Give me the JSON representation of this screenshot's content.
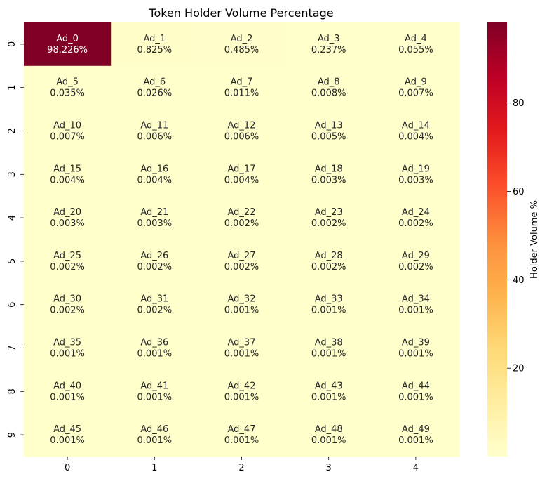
{
  "chart_data": {
    "type": "heatmap",
    "title": "Token Holder Volume Percentage",
    "xlabel": "",
    "ylabel": "",
    "x_ticks": [
      "0",
      "1",
      "2",
      "3",
      "4"
    ],
    "y_ticks": [
      "0",
      "1",
      "2",
      "3",
      "4",
      "5",
      "6",
      "7",
      "8",
      "9"
    ],
    "colorbar_label": "Holder Volume %",
    "colorbar_ticks": [
      "20",
      "40",
      "60",
      "80"
    ],
    "colorbar_range": [
      0.001,
      98.226
    ],
    "colormap": "YlOrRd",
    "colormap_stops": [
      "#ffffcc",
      "#ffeda0",
      "#fed976",
      "#feb24c",
      "#fd8d3c",
      "#fc4e2a",
      "#e31a1c",
      "#bd0026",
      "#800026"
    ],
    "cells": [
      [
        {
          "name": "Ad_0",
          "value": 98.226,
          "label": "98.226%"
        },
        {
          "name": "Ad_1",
          "value": 0.825,
          "label": "0.825%"
        },
        {
          "name": "Ad_2",
          "value": 0.485,
          "label": "0.485%"
        },
        {
          "name": "Ad_3",
          "value": 0.237,
          "label": "0.237%"
        },
        {
          "name": "Ad_4",
          "value": 0.055,
          "label": "0.055%"
        }
      ],
      [
        {
          "name": "Ad_5",
          "value": 0.035,
          "label": "0.035%"
        },
        {
          "name": "Ad_6",
          "value": 0.026,
          "label": "0.026%"
        },
        {
          "name": "Ad_7",
          "value": 0.011,
          "label": "0.011%"
        },
        {
          "name": "Ad_8",
          "value": 0.008,
          "label": "0.008%"
        },
        {
          "name": "Ad_9",
          "value": 0.007,
          "label": "0.007%"
        }
      ],
      [
        {
          "name": "Ad_10",
          "value": 0.007,
          "label": "0.007%"
        },
        {
          "name": "Ad_11",
          "value": 0.006,
          "label": "0.006%"
        },
        {
          "name": "Ad_12",
          "value": 0.006,
          "label": "0.006%"
        },
        {
          "name": "Ad_13",
          "value": 0.005,
          "label": "0.005%"
        },
        {
          "name": "Ad_14",
          "value": 0.004,
          "label": "0.004%"
        }
      ],
      [
        {
          "name": "Ad_15",
          "value": 0.004,
          "label": "0.004%"
        },
        {
          "name": "Ad_16",
          "value": 0.004,
          "label": "0.004%"
        },
        {
          "name": "Ad_17",
          "value": 0.004,
          "label": "0.004%"
        },
        {
          "name": "Ad_18",
          "value": 0.003,
          "label": "0.003%"
        },
        {
          "name": "Ad_19",
          "value": 0.003,
          "label": "0.003%"
        }
      ],
      [
        {
          "name": "Ad_20",
          "value": 0.003,
          "label": "0.003%"
        },
        {
          "name": "Ad_21",
          "value": 0.003,
          "label": "0.003%"
        },
        {
          "name": "Ad_22",
          "value": 0.002,
          "label": "0.002%"
        },
        {
          "name": "Ad_23",
          "value": 0.002,
          "label": "0.002%"
        },
        {
          "name": "Ad_24",
          "value": 0.002,
          "label": "0.002%"
        }
      ],
      [
        {
          "name": "Ad_25",
          "value": 0.002,
          "label": "0.002%"
        },
        {
          "name": "Ad_26",
          "value": 0.002,
          "label": "0.002%"
        },
        {
          "name": "Ad_27",
          "value": 0.002,
          "label": "0.002%"
        },
        {
          "name": "Ad_28",
          "value": 0.002,
          "label": "0.002%"
        },
        {
          "name": "Ad_29",
          "value": 0.002,
          "label": "0.002%"
        }
      ],
      [
        {
          "name": "Ad_30",
          "value": 0.002,
          "label": "0.002%"
        },
        {
          "name": "Ad_31",
          "value": 0.002,
          "label": "0.002%"
        },
        {
          "name": "Ad_32",
          "value": 0.001,
          "label": "0.001%"
        },
        {
          "name": "Ad_33",
          "value": 0.001,
          "label": "0.001%"
        },
        {
          "name": "Ad_34",
          "value": 0.001,
          "label": "0.001%"
        }
      ],
      [
        {
          "name": "Ad_35",
          "value": 0.001,
          "label": "0.001%"
        },
        {
          "name": "Ad_36",
          "value": 0.001,
          "label": "0.001%"
        },
        {
          "name": "Ad_37",
          "value": 0.001,
          "label": "0.001%"
        },
        {
          "name": "Ad_38",
          "value": 0.001,
          "label": "0.001%"
        },
        {
          "name": "Ad_39",
          "value": 0.001,
          "label": "0.001%"
        }
      ],
      [
        {
          "name": "Ad_40",
          "value": 0.001,
          "label": "0.001%"
        },
        {
          "name": "Ad_41",
          "value": 0.001,
          "label": "0.001%"
        },
        {
          "name": "Ad_42",
          "value": 0.001,
          "label": "0.001%"
        },
        {
          "name": "Ad_43",
          "value": 0.001,
          "label": "0.001%"
        },
        {
          "name": "Ad_44",
          "value": 0.001,
          "label": "0.001%"
        }
      ],
      [
        {
          "name": "Ad_45",
          "value": 0.001,
          "label": "0.001%"
        },
        {
          "name": "Ad_46",
          "value": 0.001,
          "label": "0.001%"
        },
        {
          "name": "Ad_47",
          "value": 0.001,
          "label": "0.001%"
        },
        {
          "name": "Ad_48",
          "value": 0.001,
          "label": "0.001%"
        },
        {
          "name": "Ad_49",
          "value": 0.001,
          "label": "0.001%"
        }
      ]
    ],
    "grid": false,
    "legend": "colorbar-right"
  }
}
